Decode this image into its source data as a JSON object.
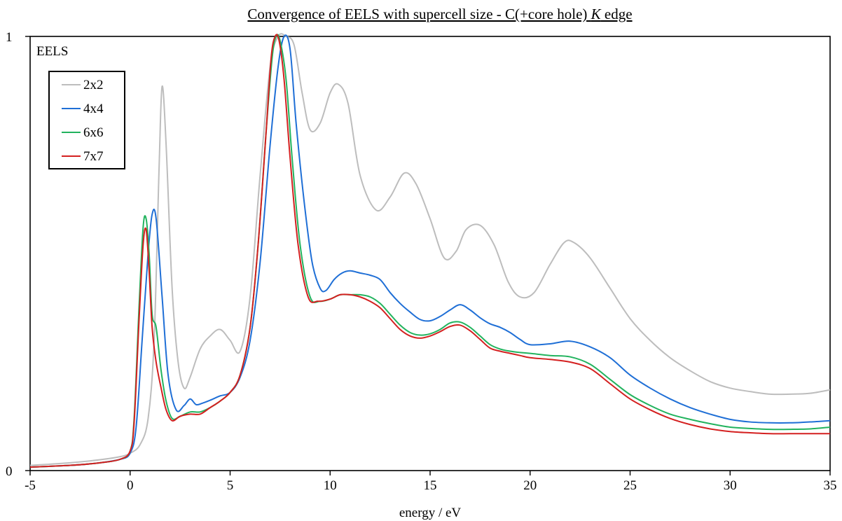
{
  "chart_data": {
    "type": "line",
    "title_prefix": "Convergence of EELS with supercell size - C(+core hole) ",
    "title_italic": "K",
    "title_suffix": " edge",
    "xlabel": "energy / eV",
    "ylabel": "EELS",
    "xlim": [
      -5,
      35
    ],
    "ylim": [
      0,
      1
    ],
    "xticks": [
      "-5",
      "0",
      "5",
      "10",
      "15",
      "20",
      "25",
      "30",
      "35"
    ],
    "yticks": [
      "0",
      "1"
    ],
    "grid": false,
    "legend_position": "top-left",
    "colors": {
      "2x2": "#bdbdbd",
      "4x4": "#1f6fd6",
      "6x6": "#22b35e",
      "7x7": "#d42020"
    },
    "series": [
      {
        "name": "2x2",
        "x": [
          -5,
          -3,
          -1.5,
          -0.5,
          0,
          0.5,
          0.9,
          1.2,
          1.45,
          1.6,
          1.8,
          2.1,
          2.4,
          2.7,
          3.0,
          3.5,
          4.0,
          4.5,
          5.0,
          5.5,
          6.0,
          6.5,
          7.0,
          7.4,
          7.8,
          8.2,
          8.6,
          9.0,
          9.5,
          10.0,
          10.4,
          10.9,
          11.5,
          12.3,
          13.0,
          13.7,
          14.3,
          15.0,
          15.7,
          16.3,
          16.8,
          17.5,
          18.2,
          18.9,
          19.5,
          20.2,
          21.0,
          21.7,
          22.2,
          23.0,
          24.0,
          25.0,
          26.0,
          27.0,
          28.0,
          29.0,
          30.0,
          31.0,
          32.0,
          33.0,
          34.0,
          35.0
        ],
        "values": [
          0.012,
          0.018,
          0.025,
          0.032,
          0.04,
          0.06,
          0.12,
          0.3,
          0.7,
          0.885,
          0.75,
          0.42,
          0.25,
          0.19,
          0.215,
          0.28,
          0.31,
          0.325,
          0.3,
          0.275,
          0.4,
          0.68,
          0.93,
          1.0,
          1.0,
          0.98,
          0.87,
          0.785,
          0.8,
          0.87,
          0.89,
          0.845,
          0.68,
          0.6,
          0.63,
          0.685,
          0.66,
          0.58,
          0.49,
          0.505,
          0.555,
          0.565,
          0.52,
          0.435,
          0.4,
          0.41,
          0.475,
          0.525,
          0.525,
          0.49,
          0.42,
          0.35,
          0.3,
          0.26,
          0.23,
          0.205,
          0.19,
          0.182,
          0.176,
          0.176,
          0.178,
          0.186
        ]
      },
      {
        "name": "4x4",
        "x": [
          -5,
          -3,
          -1.5,
          -0.5,
          0,
          0.3,
          0.6,
          0.9,
          1.1,
          1.3,
          1.6,
          1.9,
          2.3,
          2.7,
          3.0,
          3.3,
          3.6,
          4.0,
          4.5,
          5.0,
          5.5,
          6.0,
          6.5,
          7.0,
          7.4,
          7.7,
          8.0,
          8.3,
          8.7,
          9.1,
          9.5,
          9.8,
          10.2,
          10.6,
          11.0,
          11.5,
          12.0,
          12.5,
          13.0,
          13.5,
          14.0,
          14.5,
          15.0,
          15.5,
          16.0,
          16.5,
          17.0,
          17.5,
          18.0,
          18.5,
          19.0,
          19.5,
          20.0,
          21.0,
          22.0,
          23.0,
          24.0,
          25.0,
          26.0,
          27.0,
          28.0,
          29.0,
          30.0,
          31.0,
          32.0,
          33.0,
          34.0,
          35.0
        ],
        "values": [
          0.008,
          0.012,
          0.018,
          0.026,
          0.04,
          0.1,
          0.3,
          0.5,
          0.59,
          0.58,
          0.4,
          0.22,
          0.14,
          0.15,
          0.165,
          0.152,
          0.155,
          0.162,
          0.172,
          0.18,
          0.215,
          0.3,
          0.48,
          0.75,
          0.93,
          1.0,
          0.97,
          0.8,
          0.62,
          0.48,
          0.42,
          0.415,
          0.44,
          0.455,
          0.46,
          0.455,
          0.45,
          0.44,
          0.41,
          0.385,
          0.365,
          0.348,
          0.345,
          0.355,
          0.37,
          0.382,
          0.37,
          0.352,
          0.338,
          0.33,
          0.318,
          0.302,
          0.29,
          0.292,
          0.298,
          0.285,
          0.26,
          0.22,
          0.19,
          0.165,
          0.145,
          0.13,
          0.118,
          0.112,
          0.11,
          0.11,
          0.112,
          0.115
        ]
      },
      {
        "name": "6x6",
        "x": [
          -5,
          -3,
          -1.5,
          -0.5,
          0,
          0.2,
          0.45,
          0.65,
          0.8,
          0.95,
          1.1,
          1.3,
          1.55,
          1.8,
          2.1,
          2.5,
          3.0,
          3.5,
          4.0,
          4.5,
          5.0,
          5.5,
          6.0,
          6.4,
          6.8,
          7.1,
          7.3,
          7.5,
          7.8,
          8.1,
          8.5,
          9.0,
          9.5,
          10.0,
          10.5,
          11.0,
          11.5,
          12.0,
          12.5,
          13.0,
          13.5,
          14.0,
          14.5,
          15.0,
          15.5,
          16.0,
          16.5,
          17.0,
          17.5,
          18.0,
          18.5,
          19.0,
          19.5,
          20.0,
          21.0,
          22.0,
          23.0,
          24.0,
          25.0,
          26.0,
          27.0,
          28.0,
          29.0,
          30.0,
          31.0,
          32.0,
          33.0,
          34.0,
          35.0
        ],
        "values": [
          0.008,
          0.012,
          0.018,
          0.026,
          0.045,
          0.12,
          0.38,
          0.56,
          0.58,
          0.5,
          0.36,
          0.33,
          0.23,
          0.16,
          0.12,
          0.125,
          0.135,
          0.135,
          0.145,
          0.16,
          0.18,
          0.22,
          0.33,
          0.52,
          0.78,
          0.95,
          1.0,
          0.99,
          0.9,
          0.72,
          0.52,
          0.4,
          0.39,
          0.395,
          0.405,
          0.405,
          0.405,
          0.4,
          0.385,
          0.36,
          0.335,
          0.318,
          0.312,
          0.315,
          0.325,
          0.34,
          0.342,
          0.33,
          0.31,
          0.29,
          0.28,
          0.275,
          0.272,
          0.27,
          0.265,
          0.262,
          0.245,
          0.21,
          0.175,
          0.15,
          0.13,
          0.118,
          0.108,
          0.1,
          0.097,
          0.095,
          0.095,
          0.096,
          0.1
        ]
      },
      {
        "name": "7x7",
        "x": [
          -5,
          -3,
          -1.5,
          -0.5,
          0,
          0.2,
          0.45,
          0.65,
          0.8,
          0.95,
          1.1,
          1.3,
          1.55,
          1.8,
          2.1,
          2.5,
          3.0,
          3.5,
          4.0,
          4.5,
          5.0,
          5.5,
          6.0,
          6.4,
          6.8,
          7.05,
          7.25,
          7.45,
          7.7,
          8.0,
          8.4,
          8.9,
          9.4,
          10.0,
          10.5,
          11.0,
          11.5,
          12.0,
          12.5,
          13.0,
          13.5,
          14.0,
          14.5,
          15.0,
          15.5,
          16.0,
          16.5,
          17.0,
          17.5,
          18.0,
          18.5,
          19.0,
          19.5,
          20.0,
          21.0,
          22.0,
          23.0,
          24.0,
          25.0,
          26.0,
          27.0,
          28.0,
          29.0,
          30.0,
          31.0,
          32.0,
          33.0,
          34.0,
          35.0
        ],
        "values": [
          0.008,
          0.012,
          0.018,
          0.026,
          0.045,
          0.11,
          0.35,
          0.52,
          0.555,
          0.46,
          0.33,
          0.25,
          0.19,
          0.14,
          0.115,
          0.125,
          0.13,
          0.13,
          0.145,
          0.16,
          0.18,
          0.22,
          0.33,
          0.52,
          0.78,
          0.95,
          1.0,
          0.99,
          0.9,
          0.72,
          0.52,
          0.4,
          0.39,
          0.395,
          0.405,
          0.405,
          0.4,
          0.39,
          0.375,
          0.35,
          0.325,
          0.31,
          0.305,
          0.31,
          0.32,
          0.332,
          0.335,
          0.322,
          0.302,
          0.282,
          0.275,
          0.27,
          0.265,
          0.26,
          0.256,
          0.25,
          0.235,
          0.2,
          0.165,
          0.14,
          0.12,
          0.106,
          0.096,
          0.09,
          0.087,
          0.085,
          0.085,
          0.085,
          0.085
        ]
      }
    ]
  }
}
